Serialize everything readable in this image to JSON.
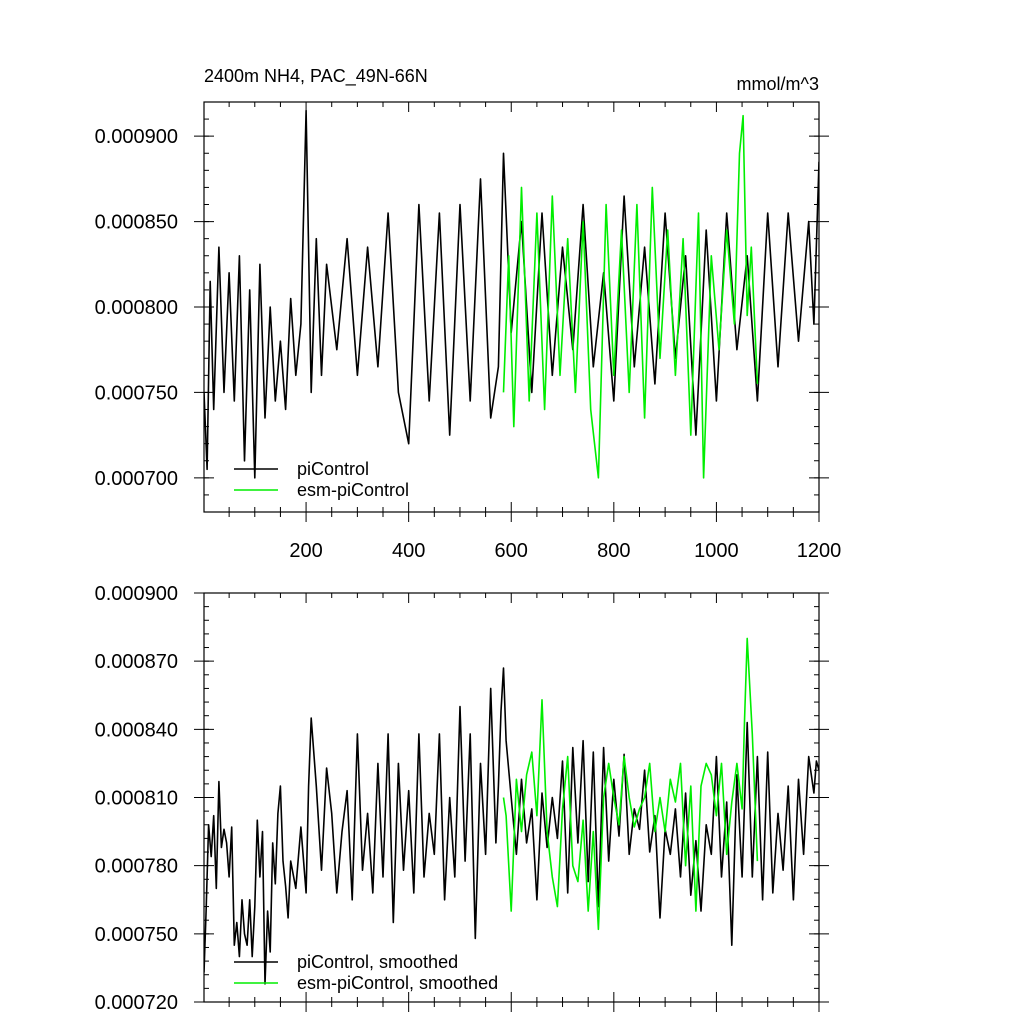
{
  "chart_data": [
    {
      "type": "line",
      "title": "2400m NH4, PAC_49N-66N",
      "unit_label": "mmol/m^3",
      "xlim": [
        1,
        1200
      ],
      "ylim": [
        0.00068,
        0.00092
      ],
      "x_ticks": [
        200,
        400,
        600,
        800,
        1000,
        1200
      ],
      "x_tick_labels": [
        "200",
        "400",
        "600",
        "800",
        "1000",
        "1200"
      ],
      "y_ticks": [
        0.0007,
        0.00075,
        0.0008,
        0.00085,
        0.0009
      ],
      "y_tick_labels": [
        "0.000700",
        "0.000750",
        "0.000800",
        "0.000850",
        "0.000900"
      ],
      "legend_placement": "bottom-left",
      "grid": false,
      "series": [
        {
          "name": "piControl",
          "color": "#000000",
          "x": [
            1,
            7,
            13,
            20,
            30,
            40,
            50,
            60,
            70,
            80,
            90,
            100,
            110,
            120,
            130,
            140,
            150,
            160,
            170,
            180,
            190,
            200,
            210,
            220,
            230,
            240,
            260,
            280,
            300,
            320,
            340,
            360,
            380,
            400,
            420,
            440,
            460,
            480,
            500,
            520,
            540,
            560,
            575,
            585,
            600,
            620,
            640,
            660,
            680,
            700,
            720,
            740,
            760,
            780,
            800,
            820,
            840,
            860,
            880,
            900,
            920,
            940,
            960,
            980,
            1000,
            1020,
            1040,
            1060,
            1080,
            1100,
            1120,
            1140,
            1160,
            1180,
            1190,
            1200
          ],
          "y": [
            0.00075,
            0.000705,
            0.000815,
            0.00074,
            0.000835,
            0.00075,
            0.00082,
            0.000745,
            0.00083,
            0.00071,
            0.00081,
            0.0007,
            0.000825,
            0.000735,
            0.0008,
            0.000745,
            0.00078,
            0.00074,
            0.000805,
            0.00076,
            0.00079,
            0.000915,
            0.00075,
            0.00084,
            0.00076,
            0.000825,
            0.000775,
            0.00084,
            0.00076,
            0.000835,
            0.000765,
            0.000855,
            0.00075,
            0.00072,
            0.00086,
            0.000745,
            0.000855,
            0.000725,
            0.00086,
            0.000745,
            0.000875,
            0.000735,
            0.000765,
            0.00089,
            0.000785,
            0.00085,
            0.00075,
            0.000855,
            0.00076,
            0.000835,
            0.000775,
            0.00086,
            0.000765,
            0.00082,
            0.000745,
            0.000865,
            0.000765,
            0.000835,
            0.000755,
            0.000855,
            0.00077,
            0.00083,
            0.000725,
            0.000845,
            0.000745,
            0.000855,
            0.000775,
            0.00083,
            0.000745,
            0.000855,
            0.000765,
            0.000855,
            0.00078,
            0.00085,
            0.00079,
            0.000885
          ]
        },
        {
          "name": "esm-piControl",
          "color": "#00ee00",
          "x": [
            585,
            595,
            605,
            620,
            635,
            650,
            665,
            680,
            695,
            710,
            725,
            740,
            755,
            770,
            785,
            800,
            815,
            830,
            845,
            860,
            875,
            890,
            905,
            920,
            935,
            950,
            965,
            975,
            990,
            1005,
            1020,
            1035,
            1045,
            1052,
            1060,
            1068,
            1080
          ],
          "y": [
            0.00075,
            0.00083,
            0.00073,
            0.00087,
            0.000745,
            0.000855,
            0.00074,
            0.000865,
            0.00076,
            0.00084,
            0.00075,
            0.00085,
            0.00074,
            0.0007,
            0.00086,
            0.00076,
            0.000845,
            0.00075,
            0.00086,
            0.000735,
            0.00087,
            0.00077,
            0.000845,
            0.00076,
            0.00084,
            0.000725,
            0.000855,
            0.0007,
            0.00083,
            0.000775,
            0.000845,
            0.00079,
            0.00089,
            0.000912,
            0.000795,
            0.000835,
            0.000755
          ]
        }
      ]
    },
    {
      "type": "line",
      "title": "",
      "xlim": [
        1,
        1200
      ],
      "ylim": [
        0.00072,
        0.0009
      ],
      "x_ticks": [
        200,
        400,
        600,
        800,
        1000,
        1200
      ],
      "y_ticks": [
        0.00072,
        0.00075,
        0.00078,
        0.00081,
        0.00084,
        0.00087,
        0.0009
      ],
      "y_tick_labels": [
        "0.000720",
        "0.000750",
        "0.000780",
        "0.000810",
        "0.000840",
        "0.000870",
        "0.000900"
      ],
      "legend_placement": "bottom-left",
      "grid": false,
      "series": [
        {
          "name": "piControl, smoothed",
          "color": "#000000",
          "x": [
            1,
            5,
            10,
            15,
            20,
            25,
            30,
            35,
            40,
            45,
            50,
            55,
            60,
            65,
            70,
            75,
            80,
            85,
            90,
            95,
            100,
            105,
            110,
            115,
            120,
            125,
            130,
            135,
            140,
            145,
            150,
            155,
            160,
            165,
            170,
            180,
            190,
            200,
            205,
            210,
            220,
            230,
            240,
            250,
            260,
            270,
            280,
            290,
            300,
            310,
            320,
            330,
            340,
            350,
            360,
            370,
            380,
            390,
            400,
            410,
            420,
            430,
            440,
            450,
            460,
            470,
            480,
            490,
            500,
            510,
            520,
            530,
            540,
            550,
            560,
            570,
            575,
            580,
            585,
            590,
            600,
            610,
            620,
            630,
            640,
            650,
            660,
            670,
            680,
            690,
            700,
            710,
            720,
            730,
            740,
            750,
            760,
            770,
            780,
            790,
            800,
            810,
            820,
            830,
            840,
            850,
            860,
            870,
            880,
            890,
            900,
            910,
            920,
            930,
            940,
            950,
            960,
            970,
            980,
            990,
            1000,
            1010,
            1020,
            1030,
            1040,
            1050,
            1060,
            1070,
            1080,
            1090,
            1100,
            1110,
            1120,
            1130,
            1140,
            1150,
            1160,
            1170,
            1180,
            1190,
            1195,
            1200
          ],
          "y": [
            0.000733,
            0.00076,
            0.000798,
            0.000784,
            0.000802,
            0.00077,
            0.000817,
            0.000788,
            0.000796,
            0.00079,
            0.000775,
            0.000797,
            0.000745,
            0.000755,
            0.00074,
            0.000765,
            0.00075,
            0.000745,
            0.000765,
            0.00074,
            0.000762,
            0.0008,
            0.000775,
            0.000795,
            0.000728,
            0.00076,
            0.000742,
            0.00079,
            0.000772,
            0.000803,
            0.000815,
            0.000782,
            0.000771,
            0.000757,
            0.000782,
            0.00077,
            0.000797,
            0.000768,
            0.000815,
            0.000845,
            0.000815,
            0.000778,
            0.000823,
            0.000803,
            0.000768,
            0.000795,
            0.000813,
            0.000765,
            0.000838,
            0.000778,
            0.000803,
            0.000768,
            0.000825,
            0.000775,
            0.000838,
            0.000755,
            0.000825,
            0.000778,
            0.000813,
            0.000768,
            0.000838,
            0.000775,
            0.000803,
            0.000785,
            0.000838,
            0.000765,
            0.00081,
            0.000775,
            0.00085,
            0.000782,
            0.000838,
            0.000748,
            0.000825,
            0.000785,
            0.000858,
            0.00079,
            0.000815,
            0.000848,
            0.000867,
            0.000835,
            0.00081,
            0.000785,
            0.000818,
            0.00079,
            0.000805,
            0.000765,
            0.000812,
            0.000788,
            0.00081,
            0.000792,
            0.000826,
            0.000768,
            0.000832,
            0.00079,
            0.000835,
            0.000773,
            0.00083,
            0.000762,
            0.000832,
            0.000782,
            0.000818,
            0.000793,
            0.000829,
            0.000785,
            0.000805,
            0.000796,
            0.000822,
            0.000786,
            0.000802,
            0.000757,
            0.000796,
            0.000785,
            0.000805,
            0.000775,
            0.000812,
            0.000767,
            0.000791,
            0.00076,
            0.000798,
            0.000785,
            0.000828,
            0.000775,
            0.000808,
            0.000745,
            0.00082,
            0.000775,
            0.000843,
            0.000775,
            0.000828,
            0.000765,
            0.00083,
            0.000768,
            0.000803,
            0.000778,
            0.000815,
            0.000765,
            0.000818,
            0.000785,
            0.000828,
            0.000812,
            0.000826,
            0.000822
          ]
        },
        {
          "name": "esm-piControl, smoothed",
          "color": "#00ee00",
          "x": [
            585,
            590,
            600,
            610,
            620,
            630,
            640,
            650,
            660,
            670,
            680,
            690,
            700,
            710,
            720,
            730,
            740,
            750,
            760,
            770,
            780,
            790,
            800,
            810,
            820,
            830,
            840,
            850,
            860,
            870,
            880,
            890,
            900,
            910,
            920,
            930,
            940,
            950,
            960,
            970,
            980,
            990,
            1000,
            1010,
            1020,
            1030,
            1040,
            1050,
            1055,
            1060,
            1070,
            1080
          ],
          "y": [
            0.00081,
            0.000802,
            0.00076,
            0.000818,
            0.000795,
            0.00082,
            0.00083,
            0.000802,
            0.000853,
            0.000795,
            0.000775,
            0.000762,
            0.000805,
            0.000828,
            0.00078,
            0.000773,
            0.0008,
            0.00076,
            0.000795,
            0.000752,
            0.00081,
            0.000825,
            0.00081,
            0.000798,
            0.000828,
            0.00081,
            0.000797,
            0.000805,
            0.00081,
            0.000825,
            0.000795,
            0.00081,
            0.000795,
            0.000818,
            0.000808,
            0.000825,
            0.00078,
            0.000815,
            0.00076,
            0.000815,
            0.000825,
            0.00082,
            0.000802,
            0.000825,
            0.000785,
            0.000808,
            0.000825,
            0.000805,
            0.000845,
            0.00088,
            0.000838,
            0.000782
          ]
        }
      ]
    }
  ]
}
